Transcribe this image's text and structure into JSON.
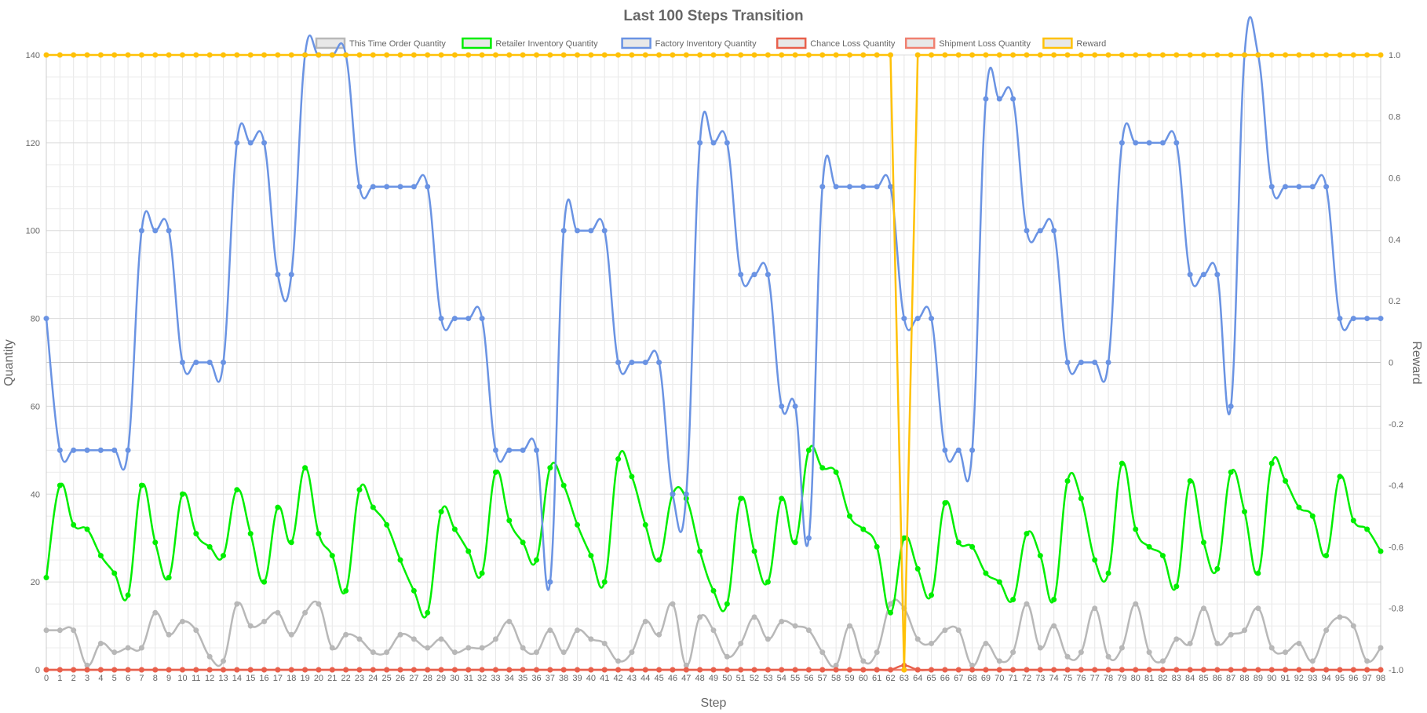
{
  "chart_data": {
    "type": "line",
    "title": "Last 100 Steps Transition",
    "xlabel": "Step",
    "ylabel_left": "Quantity",
    "ylabel_right": "Reward",
    "ylim_left": [
      0,
      140
    ],
    "ylim_right": [
      -1.0,
      1.0
    ],
    "yticks_left": [
      0,
      20,
      40,
      60,
      80,
      100,
      120,
      140
    ],
    "yticks_right": [
      "-1.0",
      "-0.8",
      "-0.6",
      "-0.4",
      "-0.2",
      "0",
      "0.2",
      "0.4",
      "0.6",
      "0.8",
      "1.0"
    ],
    "grid": true,
    "legend_position": "top",
    "x": [
      0,
      1,
      2,
      3,
      4,
      5,
      6,
      7,
      8,
      9,
      10,
      11,
      12,
      13,
      14,
      15,
      16,
      17,
      18,
      19,
      20,
      21,
      22,
      23,
      24,
      25,
      26,
      27,
      28,
      29,
      30,
      31,
      32,
      33,
      34,
      35,
      36,
      37,
      38,
      39,
      40,
      41,
      42,
      43,
      44,
      45,
      46,
      47,
      48,
      49,
      50,
      51,
      52,
      53,
      54,
      55,
      56,
      57,
      58,
      59,
      60,
      61,
      62,
      63,
      64,
      65,
      66,
      67,
      68,
      69,
      70,
      71,
      72,
      73,
      74,
      75,
      76,
      77,
      78,
      79,
      80,
      81,
      82,
      83,
      84,
      85,
      86,
      87,
      88,
      89,
      90,
      91,
      92,
      93,
      94,
      95,
      96,
      97,
      98
    ],
    "series": [
      {
        "name": "This Time Order Quantity",
        "axis": "left",
        "color": "#b8b8b8",
        "values": [
          9,
          9,
          9,
          1,
          6,
          4,
          5,
          5,
          13,
          8,
          11,
          9,
          3,
          2,
          15,
          10,
          11,
          13,
          8,
          13,
          15,
          5,
          8,
          7,
          4,
          4,
          8,
          7,
          5,
          7,
          4,
          5,
          5,
          7,
          11,
          5,
          4,
          9,
          4,
          9,
          7,
          6,
          2,
          4,
          11,
          8,
          15,
          1,
          12,
          9,
          3,
          6,
          12,
          7,
          11,
          10,
          9,
          4,
          1,
          10,
          2,
          4,
          15,
          14,
          7,
          6,
          9,
          9,
          1,
          6,
          2,
          4,
          15,
          5,
          10,
          3,
          4,
          14,
          3,
          5,
          15,
          4,
          2,
          7,
          6,
          14,
          6,
          8,
          9,
          14,
          5,
          4,
          6,
          2,
          9,
          12,
          10,
          2,
          5
        ]
      },
      {
        "name": "Retailer Inventory Quantity",
        "axis": "left",
        "color": "#00ee00",
        "values": [
          21,
          42,
          33,
          32,
          26,
          22,
          17,
          42,
          29,
          21,
          40,
          31,
          28,
          26,
          41,
          31,
          20,
          37,
          29,
          46,
          31,
          26,
          18,
          41,
          37,
          33,
          25,
          18,
          13,
          36,
          32,
          27,
          22,
          45,
          34,
          29,
          25,
          46,
          42,
          33,
          26,
          20,
          48,
          44,
          33,
          25,
          40,
          39,
          27,
          18,
          15,
          39,
          27,
          20,
          39,
          29,
          50,
          46,
          45,
          35,
          32,
          28,
          13,
          30,
          23,
          17,
          38,
          29,
          28,
          22,
          20,
          16,
          31,
          26,
          16,
          43,
          39,
          25,
          22,
          47,
          32,
          28,
          26,
          19,
          43,
          29,
          23,
          45,
          36,
          22,
          47,
          43,
          37,
          35,
          26,
          44,
          34,
          32,
          27
        ]
      },
      {
        "name": "Factory Inventory Quantity",
        "axis": "left",
        "color": "#6a93e3",
        "values": [
          80,
          50,
          50,
          50,
          50,
          50,
          50,
          100,
          100,
          100,
          70,
          70,
          70,
          70,
          120,
          120,
          120,
          90,
          90,
          140,
          140,
          140,
          140,
          110,
          110,
          110,
          110,
          110,
          110,
          80,
          80,
          80,
          80,
          50,
          50,
          50,
          50,
          20,
          100,
          100,
          100,
          100,
          70,
          70,
          70,
          70,
          40,
          40,
          120,
          120,
          120,
          90,
          90,
          90,
          60,
          60,
          30,
          110,
          110,
          110,
          110,
          110,
          110,
          80,
          80,
          80,
          50,
          50,
          50,
          130,
          130,
          130,
          100,
          100,
          100,
          70,
          70,
          70,
          70,
          120,
          120,
          120,
          120,
          120,
          90,
          90,
          90,
          60,
          140,
          140,
          110,
          110,
          110,
          110,
          110,
          80,
          80,
          80,
          80
        ]
      },
      {
        "name": "Chance Loss Quantity",
        "axis": "left",
        "color": "#e8604c",
        "values": [
          0,
          0,
          0,
          0,
          0,
          0,
          0,
          0,
          0,
          0,
          0,
          0,
          0,
          0,
          0,
          0,
          0,
          0,
          0,
          0,
          0,
          0,
          0,
          0,
          0,
          0,
          0,
          0,
          0,
          0,
          0,
          0,
          0,
          0,
          0,
          0,
          0,
          0,
          0,
          0,
          0,
          0,
          0,
          0,
          0,
          0,
          0,
          0,
          0,
          0,
          0,
          0,
          0,
          0,
          0,
          0,
          0,
          0,
          0,
          0,
          0,
          0,
          0,
          1,
          0,
          0,
          0,
          0,
          0,
          0,
          0,
          0,
          0,
          0,
          0,
          0,
          0,
          0,
          0,
          0,
          0,
          0,
          0,
          0,
          0,
          0,
          0,
          0,
          0,
          0,
          0,
          0,
          0,
          0,
          0,
          0,
          0,
          0,
          0
        ]
      },
      {
        "name": "Shipment Loss Quantity",
        "axis": "left",
        "color": "#f08070",
        "values": [
          0,
          0,
          0,
          0,
          0,
          0,
          0,
          0,
          0,
          0,
          0,
          0,
          0,
          0,
          0,
          0,
          0,
          0,
          0,
          0,
          0,
          0,
          0,
          0,
          0,
          0,
          0,
          0,
          0,
          0,
          0,
          0,
          0,
          0,
          0,
          0,
          0,
          0,
          0,
          0,
          0,
          0,
          0,
          0,
          0,
          0,
          0,
          0,
          0,
          0,
          0,
          0,
          0,
          0,
          0,
          0,
          0,
          0,
          0,
          0,
          0,
          0,
          0,
          0,
          0,
          0,
          0,
          0,
          0,
          0,
          0,
          0,
          0,
          0,
          0,
          0,
          0,
          0,
          0,
          0,
          0,
          0,
          0,
          0,
          0,
          0,
          0,
          0,
          0,
          0,
          0,
          0,
          0,
          0,
          0,
          0,
          0,
          0,
          0
        ]
      },
      {
        "name": "Reward",
        "axis": "right",
        "color": "#ffc107",
        "values": [
          1,
          1,
          1,
          1,
          1,
          1,
          1,
          1,
          1,
          1,
          1,
          1,
          1,
          1,
          1,
          1,
          1,
          1,
          1,
          1,
          1,
          1,
          1,
          1,
          1,
          1,
          1,
          1,
          1,
          1,
          1,
          1,
          1,
          1,
          1,
          1,
          1,
          1,
          1,
          1,
          1,
          1,
          1,
          1,
          1,
          1,
          1,
          1,
          1,
          1,
          1,
          1,
          1,
          1,
          1,
          1,
          1,
          1,
          1,
          1,
          1,
          1,
          1,
          -1,
          1,
          1,
          1,
          1,
          1,
          1,
          1,
          1,
          1,
          1,
          1,
          1,
          1,
          1,
          1,
          1,
          1,
          1,
          1,
          1,
          1,
          1,
          1,
          1,
          1,
          1,
          1,
          1,
          1,
          1,
          1,
          1,
          1,
          1,
          1
        ]
      }
    ]
  }
}
